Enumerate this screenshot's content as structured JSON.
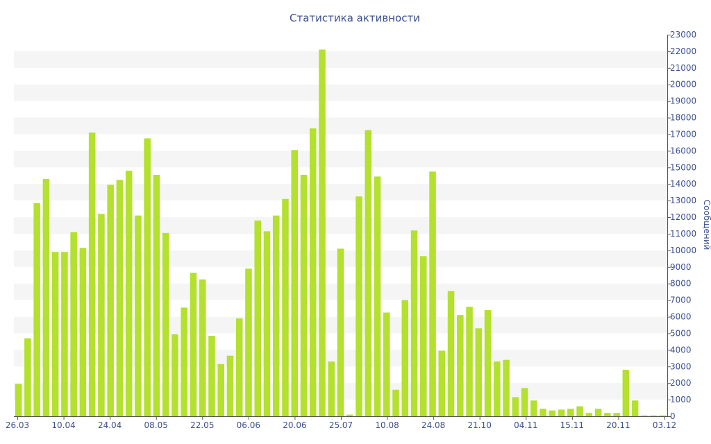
{
  "chart_data": {
    "type": "bar",
    "title": "Статистика активности",
    "ylabel": "Сообщений",
    "xlabel": "",
    "ylim": [
      0,
      23000
    ],
    "y_ticks": [
      0,
      1000,
      2000,
      3000,
      4000,
      5000,
      6000,
      7000,
      8000,
      9000,
      10000,
      11000,
      12000,
      13000,
      14000,
      15000,
      16000,
      17000,
      18000,
      19000,
      20000,
      21000,
      22000,
      23000
    ],
    "x_tick_labels": [
      "26.03",
      "10.04",
      "24.04",
      "08.05",
      "22.05",
      "06.06",
      "20.06",
      "25.07",
      "10.08",
      "24.08",
      "21.10",
      "04.11",
      "15.11",
      "20.11",
      "03.12"
    ],
    "y_axis_side": "right",
    "grid": "horizontal bands",
    "colors": {
      "bar": "#b4e02e",
      "text": "#3b4f8f",
      "axis": "#555555",
      "band": "#f5f5f5"
    },
    "values": [
      1950,
      4700,
      12850,
      14300,
      9900,
      9900,
      11100,
      10150,
      17100,
      12200,
      13950,
      14250,
      14800,
      12100,
      16750,
      14550,
      11050,
      4950,
      6550,
      8650,
      8250,
      4850,
      3150,
      3650,
      5900,
      8900,
      11800,
      11150,
      12100,
      13100,
      16050,
      14550,
      17350,
      22100,
      3300,
      10100,
      100,
      13250,
      17250,
      14450,
      6250,
      1600,
      7000,
      11200,
      9650,
      14750,
      3950,
      7550,
      6100,
      6600,
      5300,
      6400,
      3300,
      3400,
      1150,
      1700,
      950,
      450,
      350,
      400,
      450,
      600,
      200,
      450,
      200,
      200,
      2800,
      950,
      50,
      50,
      50
    ]
  }
}
